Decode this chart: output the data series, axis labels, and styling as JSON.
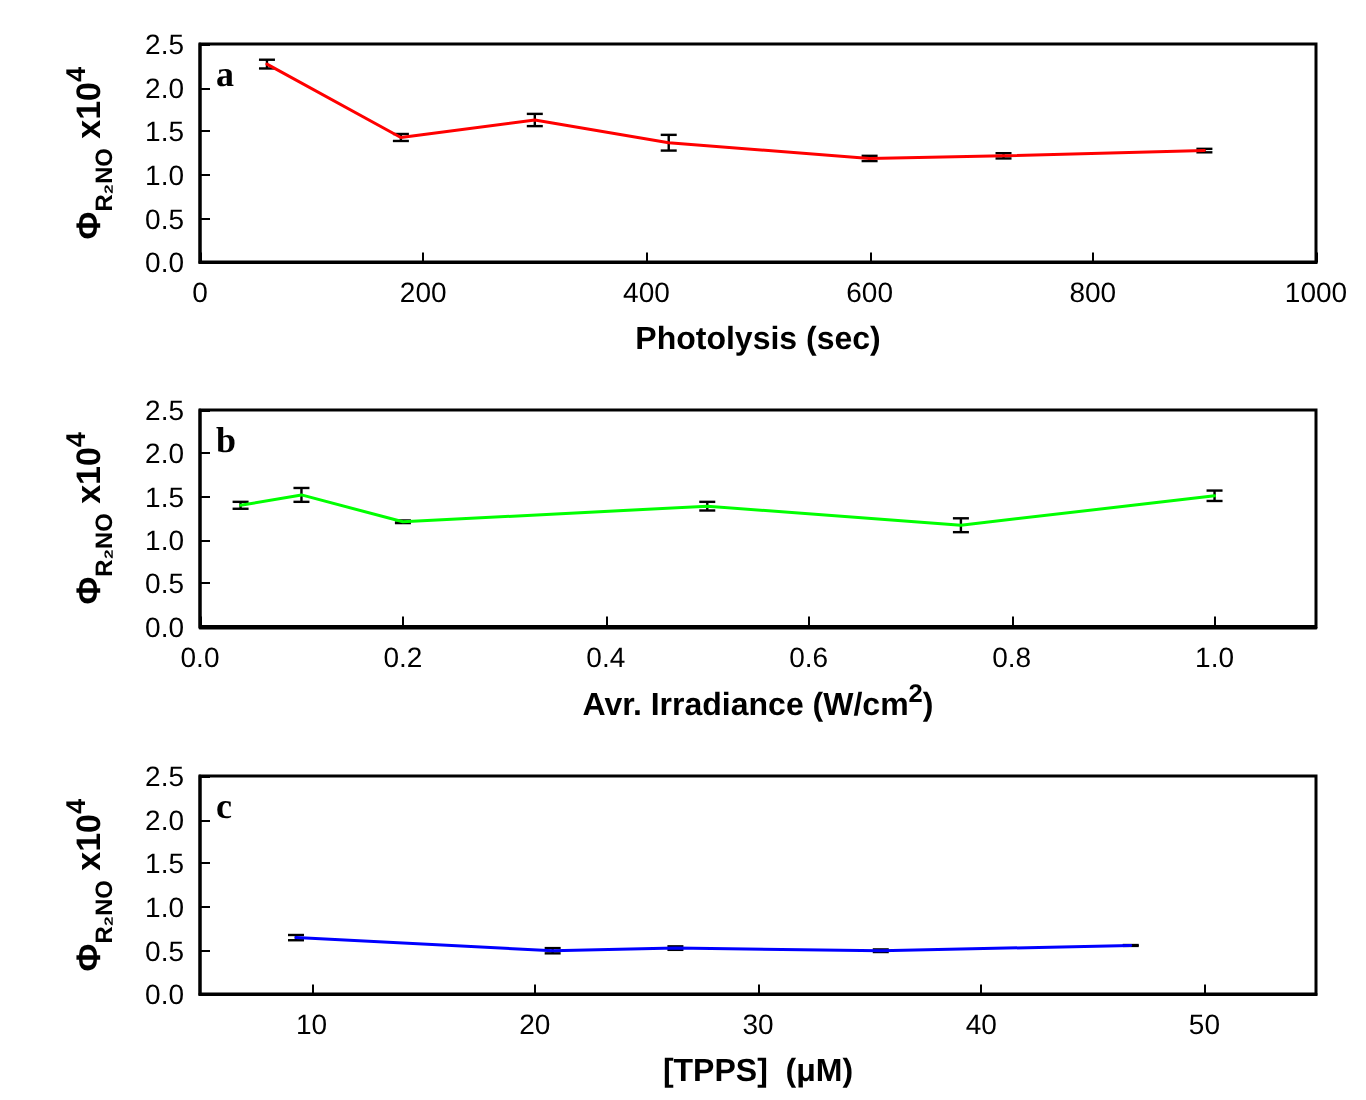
{
  "chart_data": [
    {
      "type": "line",
      "xlabel": "Photolysis (sec)",
      "ylabel": "Φ$_{R₂NO}$ x10$^{4}$",
      "annotations": [
        "a"
      ],
      "x": [
        60,
        180,
        300,
        420,
        600,
        720,
        900
      ],
      "series": [
        {
          "color": "#ff0000",
          "values": [
            2.27,
            1.43,
            1.63,
            1.37,
            1.19,
            1.22,
            1.28
          ],
          "errors": [
            0.05,
            0.04,
            0.07,
            0.09,
            0.03,
            0.03,
            0.02
          ]
        }
      ],
      "xlim": [
        0,
        1000
      ],
      "xticks": [
        0,
        200,
        400,
        600,
        800,
        1000
      ],
      "ylim": [
        0,
        2.5
      ],
      "yticks": [
        {
          "value": 0,
          "label": "0.0"
        },
        {
          "value": 0.5,
          "label": "0.5"
        },
        {
          "value": 1,
          "label": "1.0"
        },
        {
          "value": 1.5,
          "label": "1.5"
        },
        {
          "value": 2,
          "label": "2.0"
        },
        {
          "value": 2.5,
          "label": "2.5"
        }
      ],
      "grid": false,
      "marker": "none",
      "line_style": "solid"
    },
    {
      "type": "line",
      "xlabel": "Avr. Irradiance (W/cm$^{2}$)",
      "ylabel": "Φ$_{R₂NO}$ x10$^{4}$",
      "annotations": [
        "b"
      ],
      "x": [
        0.04,
        0.1,
        0.2,
        0.5,
        0.75,
        1.0
      ],
      "series": [
        {
          "color": "#00ff00",
          "values": [
            1.4,
            1.52,
            1.21,
            1.39,
            1.17,
            1.51
          ],
          "errors": [
            0.04,
            0.08,
            0.015,
            0.05,
            0.08,
            0.06
          ]
        }
      ],
      "xlim": [
        0,
        1.1
      ],
      "xticks": [
        {
          "value": 0,
          "label": "0.0"
        },
        {
          "value": 0.2,
          "label": "0.2"
        },
        {
          "value": 0.4,
          "label": "0.4"
        },
        {
          "value": 0.6,
          "label": "0.6"
        },
        {
          "value": 0.8,
          "label": "0.8"
        },
        {
          "value": 1,
          "label": "1.0"
        }
      ],
      "ylim": [
        0,
        2.5
      ],
      "yticks": [
        {
          "value": 0,
          "label": "0.0"
        },
        {
          "value": 0.5,
          "label": "0.5"
        },
        {
          "value": 1,
          "label": "1.0"
        },
        {
          "value": 1.5,
          "label": "1.5"
        },
        {
          "value": 2,
          "label": "2.0"
        },
        {
          "value": 2.5,
          "label": "2.5"
        }
      ],
      "grid": false,
      "marker": "none",
      "line_style": "solid"
    },
    {
      "type": "line",
      "xlabel": "[TPPS]  (μM)",
      "ylabel": "Φ$_{R₂NO}$ x10$^{4}$",
      "annotations": [
        "c"
      ],
      "x": [
        9.3,
        20.8,
        26.3,
        35.5,
        46.7
      ],
      "series": [
        {
          "color": "#0000ff",
          "values": [
            0.65,
            0.5,
            0.53,
            0.5,
            0.56
          ],
          "errors": [
            0.03,
            0.03,
            0.02,
            0.015,
            0.005
          ]
        }
      ],
      "xlim": [
        5,
        55
      ],
      "xticks": [
        10,
        20,
        30,
        40,
        50
      ],
      "ylim": [
        0,
        2.5
      ],
      "yticks": [
        {
          "value": 0,
          "label": "0.0"
        },
        {
          "value": 0.5,
          "label": "0.5"
        },
        {
          "value": 1,
          "label": "1.0"
        },
        {
          "value": 1.5,
          "label": "1.5"
        },
        {
          "value": 2,
          "label": "2.0"
        },
        {
          "value": 2.5,
          "label": "2.5"
        }
      ],
      "grid": false,
      "marker": "none",
      "line_style": "solid"
    }
  ]
}
